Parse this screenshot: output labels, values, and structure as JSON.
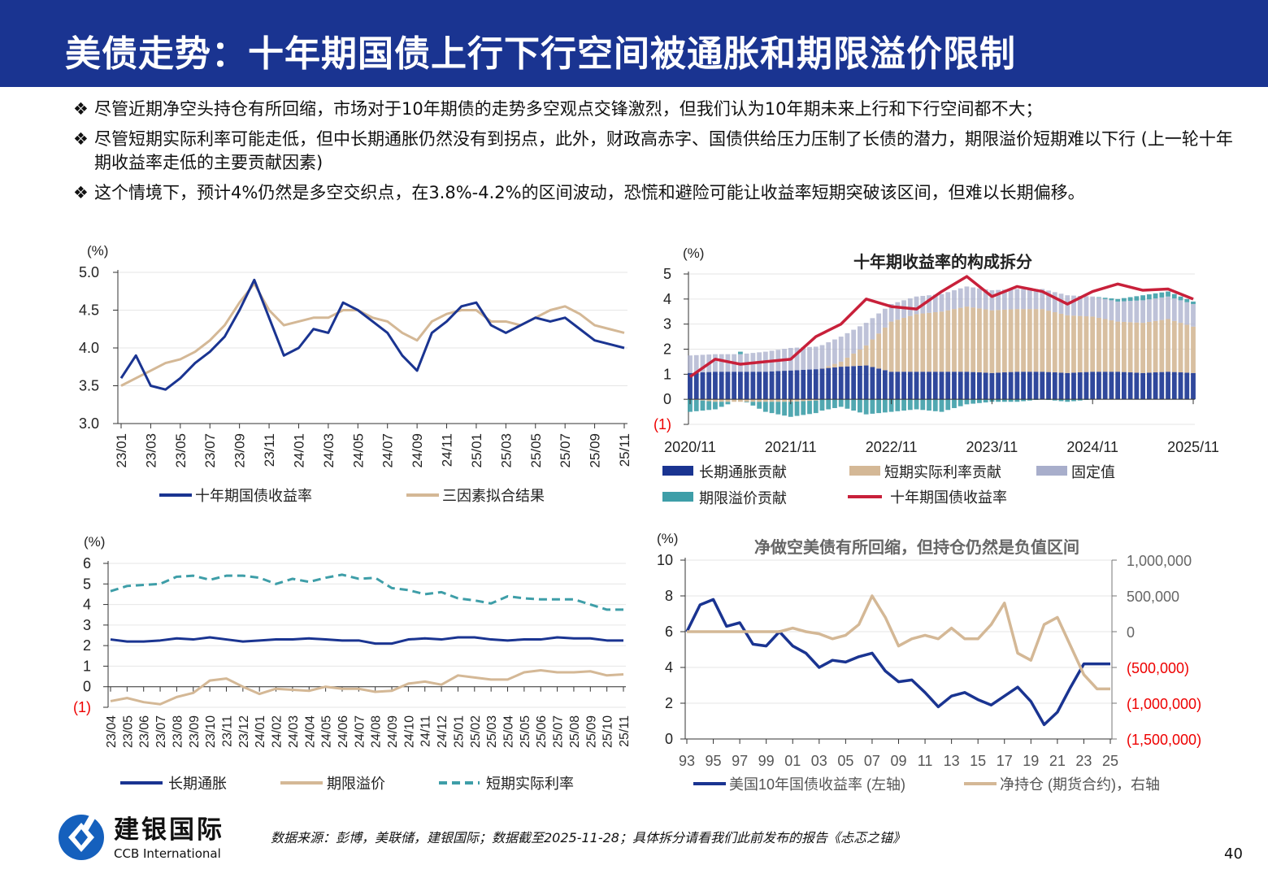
{
  "header": {
    "title": "美债走势：十年期国债上行下行空间被通胀和期限溢价限制"
  },
  "bullets": {
    "marker": "❖",
    "items": [
      "尽管近期净空头持仓有所回缩，市场对于10年期债的走势多空观点交锋激烈，但我们认为10年期未来上行和下行空间都不大；",
      "尽管短期实际利率可能走低，但中长期通胀仍然没有到拐点，此外，财政高赤字、国债供给压力压制了长债的潜力，期限溢价短期难以下行 (上一轮十年期收益率走低的主要贡献因素)",
      "这个情境下，预计4%仍然是多空交织点，在3.8%-4.2%的区间波动，恐慌和避险可能让收益率短期突破该区间，但难以长期偏移。"
    ]
  },
  "footer": {
    "brand_cn": "建银国际",
    "brand_en": "CCB International",
    "source": "数据来源：彭博，美联储，建银国际；数据截至2025-11-28；具体拆分请看我们此前发布的报告《忐忑之锚》",
    "page_number": "40",
    "brand_color": "#1560bd"
  },
  "chart_data": [
    {
      "type": "line",
      "title": "",
      "ylabel": "(%)",
      "ylim": [
        3.0,
        5.0
      ],
      "yticks": [
        3.0,
        3.5,
        4.0,
        4.5,
        5.0
      ],
      "ytick_labels": [
        "3.0",
        "3.5",
        "4.0",
        "4.5",
        "5.0"
      ],
      "x_frequency": "monthly 2023/01–2025/11",
      "xtick_labels": [
        "23/01",
        "23/03",
        "23/05",
        "23/07",
        "23/09",
        "23/11",
        "24/01",
        "24/03",
        "24/05",
        "24/07",
        "24/09",
        "24/11",
        "25/01",
        "25/03",
        "25/05",
        "25/07",
        "25/09",
        "25/11"
      ],
      "grid": true,
      "legend_placement": "bottom",
      "series": [
        {
          "name": "十年期国债收益率",
          "color": "#1a3491",
          "values": [
            3.6,
            3.9,
            3.5,
            3.45,
            3.6,
            3.8,
            3.95,
            4.15,
            4.5,
            4.9,
            4.4,
            3.9,
            4.0,
            4.25,
            4.2,
            4.6,
            4.5,
            4.35,
            4.2,
            3.9,
            3.7,
            4.2,
            4.35,
            4.55,
            4.6,
            4.3,
            4.2,
            4.3,
            4.4,
            4.35,
            4.4,
            4.25,
            4.1,
            4.05,
            4.0
          ]
        },
        {
          "name": "三因素拟合结果",
          "color": "#d4b896",
          "values": [
            3.5,
            3.6,
            3.7,
            3.8,
            3.85,
            3.95,
            4.1,
            4.3,
            4.6,
            4.85,
            4.5,
            4.3,
            4.35,
            4.4,
            4.4,
            4.5,
            4.5,
            4.4,
            4.35,
            4.2,
            4.1,
            4.35,
            4.45,
            4.5,
            4.5,
            4.35,
            4.35,
            4.3,
            4.4,
            4.5,
            4.55,
            4.45,
            4.3,
            4.25,
            4.2
          ]
        }
      ]
    },
    {
      "type": "bar",
      "stacked": true,
      "title": "十年期收益率的构成拆分",
      "ylabel": "(%)",
      "ylim": [
        -1,
        5
      ],
      "yticks": [
        -1,
        0,
        1,
        2,
        3,
        4,
        5
      ],
      "ytick_labels": [
        "(1)",
        "0",
        "1",
        "2",
        "3",
        "4",
        "5"
      ],
      "x_frequency": "quarterly 2020/11–2025/11",
      "xtick_labels": [
        "2020/11",
        "2021/11",
        "2022/11",
        "2023/11",
        "2024/11",
        "2025/11"
      ],
      "grid": true,
      "legend_placement": "bottom",
      "series": [
        {
          "name": "长期通胀贡献",
          "color": "#1a3491",
          "values": [
            1.05,
            1.1,
            1.1,
            1.1,
            1.15,
            1.2,
            1.3,
            1.35,
            1.1,
            1.1,
            1.1,
            1.1,
            1.05,
            1.1,
            1.1,
            1.05,
            1.1,
            1.1,
            1.05,
            1.1,
            1.05
          ]
        },
        {
          "name": "短期实际利率贡献",
          "color": "#d4b896",
          "values": [
            0,
            -0.1,
            -0.1,
            -0.1,
            -0.1,
            -0.05,
            0.2,
            0.8,
            2.0,
            2.3,
            2.4,
            2.6,
            2.5,
            2.5,
            2.5,
            2.3,
            2.2,
            2.0,
            2.0,
            2.1,
            1.85
          ]
        },
        {
          "name": "固定值",
          "color": "#a8aecb",
          "values": [
            0.7,
            0.7,
            0.7,
            0.8,
            0.9,
            0.9,
            1.0,
            0.9,
            0.7,
            0.7,
            0.7,
            0.8,
            0.8,
            0.8,
            0.8,
            0.8,
            0.8,
            0.8,
            0.9,
            0.9,
            0.9
          ]
        },
        {
          "name": "期限溢价贡献",
          "color": "#3e9ea8",
          "values": [
            -0.5,
            -0.3,
            0.1,
            -0.4,
            -0.6,
            -0.5,
            -0.3,
            -0.6,
            -0.5,
            -0.4,
            -0.5,
            -0.2,
            -0.1,
            -0.1,
            0,
            -0.1,
            0,
            0.1,
            0.2,
            0.2,
            0.1
          ]
        },
        {
          "name": "十年期国债收益率",
          "type": "line",
          "color": "#c8203a",
          "values": [
            0.9,
            1.6,
            1.4,
            1.5,
            1.6,
            2.5,
            3.0,
            4.0,
            3.7,
            3.6,
            4.3,
            4.9,
            4.1,
            4.5,
            4.3,
            3.8,
            4.3,
            4.6,
            4.35,
            4.4,
            4.0
          ]
        }
      ]
    },
    {
      "type": "line",
      "title": "",
      "ylabel": "(%)",
      "ylim": [
        -1,
        6
      ],
      "yticks": [
        -1,
        0,
        1,
        2,
        3,
        4,
        5,
        6
      ],
      "ytick_labels": [
        "(1)",
        "0",
        "1",
        "2",
        "3",
        "4",
        "5",
        "6"
      ],
      "x_frequency": "monthly 2023/04–2025/11",
      "xtick_labels": [
        "23/04",
        "23/05",
        "23/06",
        "23/07",
        "23/08",
        "23/09",
        "23/10",
        "23/11",
        "23/12",
        "24/01",
        "24/02",
        "24/03",
        "24/04",
        "24/05",
        "24/06",
        "24/07",
        "24/08",
        "24/09",
        "24/10",
        "24/11",
        "24/12",
        "25/01",
        "25/02",
        "25/03",
        "25/04",
        "25/05",
        "25/06",
        "25/07",
        "25/08",
        "25/09",
        "25/10",
        "25/11"
      ],
      "grid": true,
      "legend_placement": "bottom",
      "series": [
        {
          "name": "长期通胀",
          "color": "#1a3491",
          "style": "solid",
          "values": [
            2.3,
            2.2,
            2.2,
            2.25,
            2.35,
            2.3,
            2.4,
            2.3,
            2.2,
            2.25,
            2.3,
            2.3,
            2.35,
            2.3,
            2.25,
            2.25,
            2.1,
            2.1,
            2.3,
            2.35,
            2.3,
            2.4,
            2.4,
            2.3,
            2.25,
            2.3,
            2.3,
            2.4,
            2.35,
            2.35,
            2.25,
            2.25
          ]
        },
        {
          "name": "期限溢价",
          "color": "#d4b896",
          "style": "solid",
          "values": [
            -0.7,
            -0.55,
            -0.75,
            -0.85,
            -0.5,
            -0.3,
            0.3,
            0.4,
            0.0,
            -0.35,
            -0.1,
            -0.15,
            -0.2,
            0,
            -0.1,
            -0.1,
            -0.25,
            -0.2,
            0.15,
            0.25,
            0.1,
            0.55,
            0.45,
            0.35,
            0.35,
            0.7,
            0.8,
            0.7,
            0.7,
            0.75,
            0.55,
            0.6
          ]
        },
        {
          "name": "短期实际利率",
          "color": "#3e9ea8",
          "style": "dashed",
          "values": [
            4.65,
            4.9,
            4.95,
            5.0,
            5.35,
            5.4,
            5.2,
            5.4,
            5.4,
            5.3,
            5.0,
            5.25,
            5.1,
            5.3,
            5.45,
            5.25,
            5.3,
            4.8,
            4.7,
            4.5,
            4.6,
            4.3,
            4.2,
            4.05,
            4.4,
            4.3,
            4.25,
            4.25,
            4.25,
            4.0,
            3.75,
            3.75
          ]
        }
      ]
    },
    {
      "type": "line",
      "title": "净做空美债有所回缩，但持仓仍然是负值区间",
      "ylabel": "(%)",
      "ylim": [
        0,
        10
      ],
      "yticks": [
        0,
        2,
        4,
        6,
        8,
        10
      ],
      "ytick_labels": [
        "0",
        "2",
        "4",
        "6",
        "8",
        "10"
      ],
      "y2lim": [
        -1500000,
        1000000
      ],
      "y2ticks": [
        -1500000,
        -1000000,
        -500000,
        0,
        500000,
        1000000
      ],
      "y2tick_labels": [
        "(1,500,000)",
        "(1,000,000)",
        "(500,000)",
        "0",
        "500,000",
        "1,000,000"
      ],
      "x_frequency": "annual 1993–2025",
      "xtick_labels": [
        "93",
        "95",
        "97",
        "99",
        "01",
        "03",
        "05",
        "07",
        "09",
        "11",
        "13",
        "15",
        "17",
        "19",
        "21",
        "23",
        "25"
      ],
      "grid": true,
      "legend_placement": "bottom",
      "series": [
        {
          "name": "美国10年国债收益率 (左轴)",
          "axis": "left",
          "color": "#1a3491",
          "values": [
            6.0,
            7.5,
            7.8,
            6.3,
            6.5,
            5.3,
            5.2,
            6.0,
            5.2,
            4.8,
            4.0,
            4.4,
            4.3,
            4.6,
            4.8,
            3.8,
            3.2,
            3.3,
            2.6,
            1.8,
            2.4,
            2.6,
            2.2,
            1.9,
            2.4,
            2.9,
            2.1,
            0.8,
            1.5,
            2.9,
            4.2,
            4.2,
            4.2
          ]
        },
        {
          "name": "净持仓 (期货合约)，右轴",
          "axis": "right",
          "color": "#d4b896",
          "values": [
            0,
            0,
            0,
            0,
            0,
            0,
            0,
            0,
            50000,
            0,
            -30000,
            -100000,
            -50000,
            100000,
            500000,
            200000,
            -200000,
            -100000,
            -50000,
            -100000,
            50000,
            -100000,
            -100000,
            100000,
            400000,
            -300000,
            -400000,
            100000,
            200000,
            -200000,
            -600000,
            -800000,
            -800000
          ]
        }
      ]
    }
  ]
}
